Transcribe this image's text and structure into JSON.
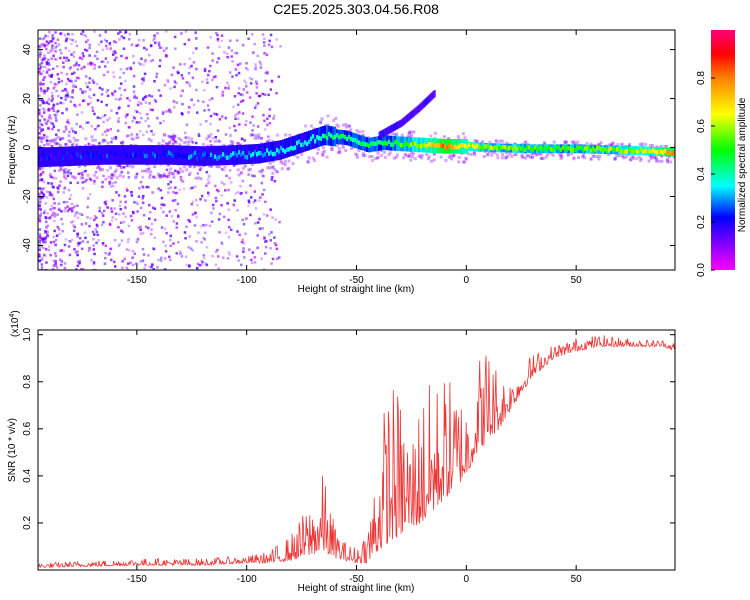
{
  "figure": {
    "title": "C2E5.2025.303.04.56.R08"
  },
  "chart_data": [
    {
      "type": "heatmap",
      "title": "C2E5.2025.303.04.56.R08",
      "xlabel": "Height of straight line (km)",
      "ylabel": "Frequency (Hz)",
      "xlim": [
        -195,
        95
      ],
      "ylim": [
        -50,
        48
      ],
      "xticks": [
        -150,
        -100,
        -50,
        0,
        50
      ],
      "yticks": [
        -40,
        -20,
        0,
        20,
        40
      ],
      "colorbar": {
        "label": "Normalized spectral amplitude",
        "range": [
          0.0,
          1.0
        ],
        "ticks": [
          0.0,
          0.2,
          0.4,
          0.6,
          0.8
        ],
        "colors": [
          "#ff00ff",
          "#8a00ff",
          "#0000ff",
          "#00ffff",
          "#00ff00",
          "#ffff00",
          "#ff8000",
          "#ff0000",
          "#ff0080"
        ]
      },
      "ridge": {
        "x": [
          -195,
          -180,
          -165,
          -150,
          -135,
          -120,
          -105,
          -95,
          -85,
          -75,
          -65,
          -55,
          -45,
          -38,
          -30,
          -20,
          -10,
          0,
          10,
          30,
          50,
          70,
          85,
          95
        ],
        "freq": [
          -4,
          -3.5,
          -3,
          -3,
          -3,
          -3.5,
          -3,
          -2.5,
          -1,
          2,
          5,
          4,
          1,
          2,
          1.5,
          1,
          0.5,
          0.5,
          0,
          -0.5,
          -0.5,
          -1,
          -1.5,
          -2
        ],
        "amplitude": [
          0.15,
          0.18,
          0.2,
          0.2,
          0.22,
          0.25,
          0.3,
          0.3,
          0.3,
          0.32,
          0.4,
          0.4,
          0.42,
          0.4,
          0.5,
          0.6,
          0.8,
          0.6,
          0.55,
          0.5,
          0.5,
          0.55,
          0.6,
          0.8
        ]
      },
      "branch": {
        "x": [
          -40,
          -30,
          -22,
          -15
        ],
        "freq": [
          5,
          10,
          16,
          22
        ]
      }
    },
    {
      "type": "line",
      "xlabel": "Height of straight line (km)",
      "ylabel": "SNR (10 * v/v)",
      "scale_label": "(x10",
      "scale_exponent": "4",
      "ylabel_multiplier": 10000,
      "xlim": [
        -195,
        95
      ],
      "ylim": [
        0.0,
        1.02
      ],
      "xticks": [
        -150,
        -100,
        -50,
        0,
        50
      ],
      "yticks": [
        0.2,
        0.4,
        0.6,
        0.8,
        1.0
      ],
      "color": "#ee3333",
      "envelope": {
        "x": [
          -195,
          -150,
          -120,
          -100,
          -90,
          -80,
          -72,
          -65,
          -60,
          -55,
          -50,
          -45,
          -40,
          -35,
          -30,
          -25,
          -20,
          -15,
          -10,
          -5,
          0,
          5,
          10,
          15,
          20,
          25,
          30,
          40,
          50,
          60,
          70,
          80,
          90,
          95
        ],
        "base": [
          0.01,
          0.02,
          0.02,
          0.03,
          0.03,
          0.04,
          0.06,
          0.08,
          0.05,
          0.04,
          0.03,
          0.03,
          0.08,
          0.12,
          0.15,
          0.18,
          0.2,
          0.25,
          0.3,
          0.35,
          0.4,
          0.5,
          0.55,
          0.6,
          0.68,
          0.75,
          0.82,
          0.9,
          0.93,
          0.95,
          0.95,
          0.95,
          0.95,
          0.93
        ],
        "peak": [
          0.03,
          0.05,
          0.05,
          0.06,
          0.08,
          0.15,
          0.28,
          0.42,
          0.2,
          0.12,
          0.1,
          0.2,
          0.55,
          0.85,
          0.75,
          0.6,
          0.8,
          0.8,
          0.85,
          0.8,
          0.75,
          0.92,
          0.99,
          0.85,
          0.82,
          0.88,
          0.92,
          0.96,
          0.99,
          1.0,
          0.99,
          0.98,
          0.98,
          0.97
        ]
      }
    }
  ]
}
